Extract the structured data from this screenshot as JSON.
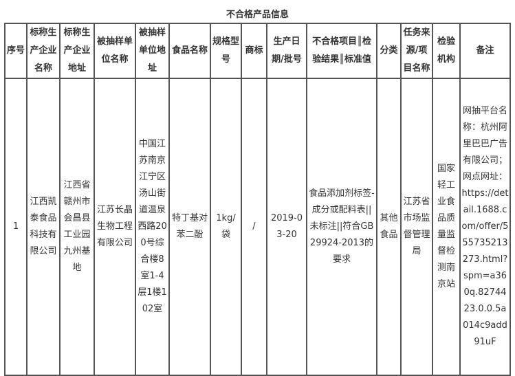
{
  "title": "不合格产品信息",
  "headers": [
    "序号",
    "标称生产企业名称",
    "标称生产企业地址",
    "被抽样单位名称",
    "被抽样单位地址",
    "食品名称",
    "规格型号",
    "商标",
    "生产日期/批号",
    "不合格项目║检验结果║标准值",
    "分类",
    "任务来源/项目名称",
    "检验机构",
    "备注"
  ],
  "rows": [
    [
      "1",
      "江西凯泰食品科技有限公司",
      "江西省赣州市会昌县工业园九州基地",
      "江苏长晶生物工程有限公司",
      "中国江苏南京江宁区汤山街道温泉西路200号综合楼8室1-4层1楼102室",
      "特丁基对苯二酚",
      "1kg/袋",
      "/",
      "2019-03-20",
      "食品添加剂标签-成分或配料表||未标注||符合GB29924-2013的要求",
      "其他食品",
      "江苏省市场监督管理局",
      "国家轻工业食品质量监督检测南京站",
      "网抽平台名称：杭州阿里巴巴广告有限公司；网点网址：https://detail.1688.com/offer/555735213273.html?spm=a360q.8274423.0.0.5a014c9add91uF"
    ]
  ]
}
